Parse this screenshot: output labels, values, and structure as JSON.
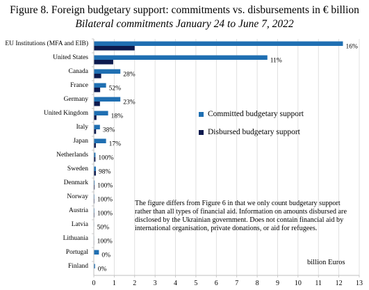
{
  "title": "Figure 8. Foreign budgetary support: commitments vs. disbursements in € billion",
  "subtitle": "Bilateral commitments January 24 to June 7, 2022",
  "note_lines": [
    "The figure differs from Figure 6 in that we only count budgetary support",
    "rather than all types of financial aid. Information on amounts disbursed are",
    "disclosed by the Ukrainian government. Does not contain financial aid by",
    "international organisation, private donations, or aid for refugees."
  ],
  "unit_label": "billion Euros",
  "colors": {
    "committed": "#1f6fb2",
    "disbursed": "#0d1a4e",
    "grid": "#d9d9d9",
    "axis": "#bfbfbf"
  },
  "chart_data": {
    "type": "bar",
    "orientation": "horizontal",
    "categories": [
      "EU Institutions (MFA and EIB)",
      "United States",
      "Canada",
      "France",
      "Germany",
      "United Kingdom",
      "Italy",
      "Japan",
      "Netherlands",
      "Sweden",
      "Denmark",
      "Norway",
      "Austria",
      "Latvia",
      "Lithuania",
      "Portugal",
      "Finland"
    ],
    "series": [
      {
        "name": "Committed budgetary support",
        "values": [
          12.2,
          8.5,
          1.3,
          0.6,
          1.3,
          0.7,
          0.3,
          0.6,
          0.08,
          0.1,
          0.04,
          0.03,
          0.03,
          0.02,
          0.02,
          0.25,
          0.06
        ]
      },
      {
        "name": "Disbursed budgetary support",
        "values": [
          2.0,
          0.95,
          0.36,
          0.31,
          0.3,
          0.13,
          0.11,
          0.1,
          0.08,
          0.1,
          0.04,
          0.03,
          0.03,
          0.01,
          0.02,
          0.0,
          0.0
        ]
      }
    ],
    "data_labels": [
      "16%",
      "11%",
      "28%",
      "52%",
      "23%",
      "18%",
      "38%",
      "17%",
      "100%",
      "98%",
      "100%",
      "100%",
      "100%",
      "50%",
      "100%",
      "0%",
      "0%"
    ],
    "xlim": [
      0,
      13
    ],
    "xticks": [
      "0",
      "1",
      "2",
      "3",
      "4",
      "5",
      "6",
      "7",
      "8",
      "9",
      "10",
      "11",
      "12",
      "13"
    ],
    "grid": true,
    "legend_position": "center-right"
  }
}
